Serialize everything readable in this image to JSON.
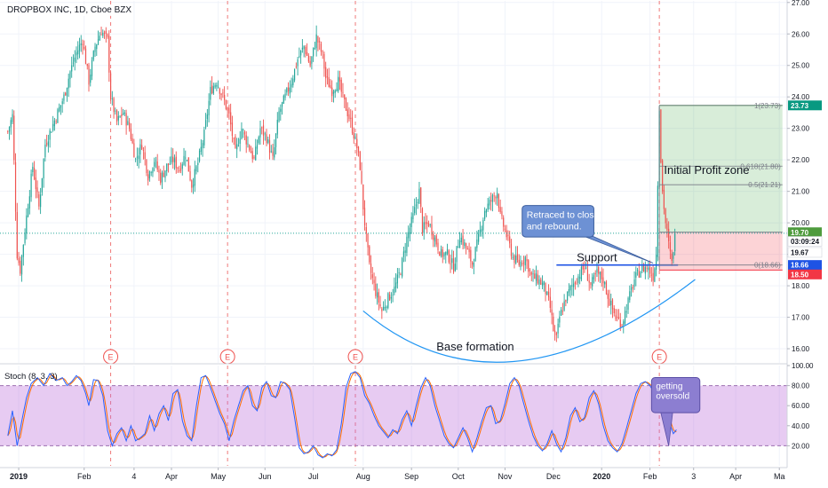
{
  "header": {
    "title": "DROPBOX INC, 1D, Cboe BZX"
  },
  "chart_data": {
    "type": "candlestick",
    "title": "DROPBOX INC, 1D, Cboe BZX",
    "price_axis": {
      "ylim": [
        15.55,
        27.05
      ],
      "ticks": [
        "16.00",
        "17.00",
        "18.00",
        "19.00",
        "20.00",
        "21.00",
        "22.00",
        "23.00",
        "24.00",
        "25.00",
        "26.00",
        "27.00"
      ]
    },
    "time_axis": {
      "labels": [
        {
          "t": 7,
          "label": "2019",
          "bold": true
        },
        {
          "t": 49,
          "label": "Feb"
        },
        {
          "t": 81,
          "label": "4"
        },
        {
          "t": 105,
          "label": "Apr"
        },
        {
          "t": 135,
          "label": "May"
        },
        {
          "t": 165,
          "label": "Jun"
        },
        {
          "t": 196,
          "label": "Jul"
        },
        {
          "t": 228,
          "label": "Aug"
        },
        {
          "t": 259,
          "label": "Sep"
        },
        {
          "t": 289,
          "label": "Oct"
        },
        {
          "t": 319,
          "label": "Nov"
        },
        {
          "t": 350,
          "label": "Dec"
        },
        {
          "t": 381,
          "label": "2020",
          "bold": true
        },
        {
          "t": 412,
          "label": "Feb"
        },
        {
          "t": 440,
          "label": "3"
        },
        {
          "t": 467,
          "label": "Apr"
        },
        {
          "t": 495,
          "label": "Ma"
        }
      ]
    },
    "price_keypoints": [
      [
        0,
        22.9
      ],
      [
        3,
        23.4
      ],
      [
        6,
        19.0
      ],
      [
        8,
        18.5
      ],
      [
        12,
        20.2
      ],
      [
        16,
        21.8
      ],
      [
        20,
        20.5
      ],
      [
        24,
        22.5
      ],
      [
        28,
        23.0
      ],
      [
        32,
        23.5
      ],
      [
        36,
        24.0
      ],
      [
        40,
        24.8
      ],
      [
        44,
        25.4
      ],
      [
        48,
        25.8
      ],
      [
        52,
        24.5
      ],
      [
        56,
        25.6
      ],
      [
        60,
        26.1
      ],
      [
        64,
        25.8
      ],
      [
        66,
        24.0
      ],
      [
        70,
        23.2
      ],
      [
        74,
        23.5
      ],
      [
        78,
        23.0
      ],
      [
        82,
        22.0
      ],
      [
        86,
        22.5
      ],
      [
        90,
        21.5
      ],
      [
        94,
        22.0
      ],
      [
        98,
        21.4
      ],
      [
        102,
        21.8
      ],
      [
        106,
        22.0
      ],
      [
        110,
        21.7
      ],
      [
        114,
        22.2
      ],
      [
        118,
        21.2
      ],
      [
        122,
        21.9
      ],
      [
        126,
        22.8
      ],
      [
        130,
        24.2
      ],
      [
        134,
        24.5
      ],
      [
        138,
        24.0
      ],
      [
        142,
        23.4
      ],
      [
        146,
        22.2
      ],
      [
        150,
        23.0
      ],
      [
        154,
        22.5
      ],
      [
        158,
        22.0
      ],
      [
        162,
        23.0
      ],
      [
        166,
        22.7
      ],
      [
        170,
        22.0
      ],
      [
        174,
        23.5
      ],
      [
        178,
        24.0
      ],
      [
        182,
        24.5
      ],
      [
        186,
        25.2
      ],
      [
        190,
        25.6
      ],
      [
        194,
        25.0
      ],
      [
        198,
        25.9
      ],
      [
        202,
        25.3
      ],
      [
        204,
        24.6
      ],
      [
        208,
        24.2
      ],
      [
        212,
        24.5
      ],
      [
        216,
        23.8
      ],
      [
        220,
        23.2
      ],
      [
        224,
        22.4
      ],
      [
        226,
        21.8
      ],
      [
        228,
        20.5
      ],
      [
        230,
        19.5
      ],
      [
        232,
        18.6
      ],
      [
        236,
        17.8
      ],
      [
        240,
        17.2
      ],
      [
        244,
        17.6
      ],
      [
        248,
        17.9
      ],
      [
        252,
        18.5
      ],
      [
        256,
        19.5
      ],
      [
        260,
        20.2
      ],
      [
        264,
        21.0
      ],
      [
        266,
        19.8
      ],
      [
        270,
        20.0
      ],
      [
        274,
        19.5
      ],
      [
        278,
        19.0
      ],
      [
        282,
        19.0
      ],
      [
        286,
        18.6
      ],
      [
        290,
        19.6
      ],
      [
        294,
        19.2
      ],
      [
        298,
        18.7
      ],
      [
        302,
        19.5
      ],
      [
        306,
        20.4
      ],
      [
        310,
        20.7
      ],
      [
        314,
        21.0
      ],
      [
        316,
        20.2
      ],
      [
        320,
        19.6
      ],
      [
        324,
        18.9
      ],
      [
        328,
        18.7
      ],
      [
        332,
        18.9
      ],
      [
        336,
        18.3
      ],
      [
        340,
        18.2
      ],
      [
        344,
        18.0
      ],
      [
        348,
        17.3
      ],
      [
        350,
        16.6
      ],
      [
        352,
        16.3
      ],
      [
        354,
        17.0
      ],
      [
        358,
        17.6
      ],
      [
        362,
        18.0
      ],
      [
        366,
        18.3
      ],
      [
        370,
        18.6
      ],
      [
        374,
        18.0
      ],
      [
        378,
        18.4
      ],
      [
        382,
        18.2
      ],
      [
        386,
        17.5
      ],
      [
        390,
        17.0
      ],
      [
        394,
        16.8
      ],
      [
        398,
        17.5
      ],
      [
        402,
        18.2
      ],
      [
        406,
        18.5
      ],
      [
        410,
        18.6
      ],
      [
        414,
        18.3
      ],
      [
        416,
        19.0
      ],
      [
        417,
        21.3
      ],
      [
        418,
        23.73
      ],
      [
        419,
        22.0
      ],
      [
        420,
        21.0
      ],
      [
        422,
        20.0
      ],
      [
        424,
        19.3
      ],
      [
        426,
        18.7
      ],
      [
        428,
        19.67
      ]
    ],
    "stochastic": {
      "name": "Stoch (8, 3, 3)",
      "ylim": [
        0,
        100
      ],
      "upper_band": 80,
      "lower_band": 20,
      "ticks": [
        "20.00",
        "40.00",
        "60.00",
        "80.00",
        "100.00"
      ],
      "k_keypoints": [
        [
          0,
          30
        ],
        [
          3,
          55
        ],
        [
          6,
          20
        ],
        [
          9,
          45
        ],
        [
          12,
          68
        ],
        [
          15,
          82
        ],
        [
          19,
          88
        ],
        [
          23,
          80
        ],
        [
          27,
          92
        ],
        [
          31,
          85
        ],
        [
          35,
          88
        ],
        [
          38,
          80
        ],
        [
          41,
          84
        ],
        [
          44,
          90
        ],
        [
          47,
          85
        ],
        [
          50,
          72
        ],
        [
          52,
          60
        ],
        [
          55,
          86
        ],
        [
          58,
          85
        ],
        [
          61,
          70
        ],
        [
          64,
          35
        ],
        [
          67,
          20
        ],
        [
          70,
          32
        ],
        [
          73,
          38
        ],
        [
          76,
          25
        ],
        [
          79,
          40
        ],
        [
          82,
          25
        ],
        [
          85,
          28
        ],
        [
          88,
          32
        ],
        [
          91,
          50
        ],
        [
          94,
          35
        ],
        [
          97,
          52
        ],
        [
          100,
          60
        ],
        [
          103,
          45
        ],
        [
          106,
          72
        ],
        [
          109,
          76
        ],
        [
          112,
          45
        ],
        [
          115,
          30
        ],
        [
          118,
          25
        ],
        [
          121,
          60
        ],
        [
          124,
          88
        ],
        [
          127,
          90
        ],
        [
          130,
          78
        ],
        [
          133,
          65
        ],
        [
          136,
          52
        ],
        [
          139,
          42
        ],
        [
          142,
          25
        ],
        [
          145,
          45
        ],
        [
          148,
          60
        ],
        [
          151,
          75
        ],
        [
          154,
          80
        ],
        [
          157,
          60
        ],
        [
          160,
          55
        ],
        [
          163,
          78
        ],
        [
          166,
          84
        ],
        [
          169,
          70
        ],
        [
          172,
          68
        ],
        [
          175,
          84
        ],
        [
          178,
          82
        ],
        [
          181,
          76
        ],
        [
          184,
          48
        ],
        [
          187,
          18
        ],
        [
          190,
          12
        ],
        [
          193,
          14
        ],
        [
          196,
          20
        ],
        [
          199,
          11
        ],
        [
          202,
          8
        ],
        [
          205,
          12
        ],
        [
          208,
          10
        ],
        [
          211,
          16
        ],
        [
          214,
          42
        ],
        [
          217,
          78
        ],
        [
          220,
          92
        ],
        [
          223,
          94
        ],
        [
          226,
          88
        ],
        [
          229,
          70
        ],
        [
          232,
          62
        ],
        [
          235,
          50
        ],
        [
          238,
          40
        ],
        [
          241,
          34
        ],
        [
          244,
          28
        ],
        [
          247,
          36
        ],
        [
          250,
          32
        ],
        [
          253,
          46
        ],
        [
          256,
          55
        ],
        [
          259,
          40
        ],
        [
          262,
          60
        ],
        [
          265,
          78
        ],
        [
          268,
          88
        ],
        [
          271,
          80
        ],
        [
          274,
          60
        ],
        [
          277,
          45
        ],
        [
          280,
          30
        ],
        [
          283,
          22
        ],
        [
          286,
          18
        ],
        [
          289,
          28
        ],
        [
          292,
          38
        ],
        [
          295,
          28
        ],
        [
          298,
          14
        ],
        [
          301,
          28
        ],
        [
          304,
          44
        ],
        [
          307,
          58
        ],
        [
          310,
          60
        ],
        [
          313,
          42
        ],
        [
          316,
          45
        ],
        [
          319,
          62
        ],
        [
          322,
          82
        ],
        [
          325,
          88
        ],
        [
          328,
          80
        ],
        [
          331,
          62
        ],
        [
          334,
          45
        ],
        [
          337,
          30
        ],
        [
          340,
          20
        ],
        [
          343,
          15
        ],
        [
          346,
          22
        ],
        [
          349,
          35
        ],
        [
          352,
          22
        ],
        [
          355,
          14
        ],
        [
          358,
          28
        ],
        [
          361,
          50
        ],
        [
          364,
          58
        ],
        [
          367,
          44
        ],
        [
          370,
          48
        ],
        [
          373,
          68
        ],
        [
          376,
          75
        ],
        [
          379,
          62
        ],
        [
          382,
          40
        ],
        [
          385,
          25
        ],
        [
          388,
          18
        ],
        [
          391,
          14
        ],
        [
          394,
          22
        ],
        [
          397,
          38
        ],
        [
          400,
          55
        ],
        [
          403,
          72
        ],
        [
          406,
          82
        ],
        [
          409,
          84
        ],
        [
          412,
          80
        ],
        [
          415,
          72
        ],
        [
          418,
          85
        ],
        [
          421,
          70
        ],
        [
          424,
          45
        ],
        [
          427,
          32
        ],
        [
          429,
          36
        ]
      ]
    },
    "annotations": {
      "support": {
        "price": 18.66,
        "t0": 352,
        "t1": 430,
        "label": "Support"
      },
      "base_curve": {
        "t0": 228,
        "t_bottom": 326,
        "t1": 441,
        "p0": 17.2,
        "p_bottom": 15.6,
        "p1": 18.2,
        "label": "Base formation"
      },
      "position": {
        "t0": 418,
        "t1": 497,
        "entry": 19.7,
        "stop": 18.5,
        "target": 23.73,
        "fib_levels": [
          {
            "price": 23.73,
            "label": "1(23.73)"
          },
          {
            "price": 21.8,
            "label": "0.618(21.80)"
          },
          {
            "price": 21.21,
            "label": "0.5(21.21)"
          },
          {
            "price": 18.66,
            "label": "0(18.66)"
          }
        ],
        "label": "Initial Profit zone"
      },
      "callout_price": {
        "text_lines": [
          "Retraced to close gap",
          "and rebound."
        ],
        "t_left": 330,
        "t_right": 376,
        "top_price": 20.55,
        "bottom_price": 19.55,
        "arrow_t": 414,
        "arrow_price": 18.72
      },
      "callout_stoch": {
        "text_lines": [
          "getting",
          "oversold"
        ],
        "t_left": 413,
        "t_right": 444,
        "top_value": 88,
        "bottom_value": 53,
        "arrow_t": 424,
        "arrow_value": 20
      },
      "earnings": [
        {
          "t": 66,
          "label": "E"
        },
        {
          "t": 141,
          "label": "E"
        },
        {
          "t": 223,
          "label": "E"
        },
        {
          "t": 418,
          "label": "E"
        }
      ],
      "price_tags": [
        {
          "label": "23.73",
          "price": 23.73,
          "color": "#089981"
        },
        {
          "label": "19.70",
          "price": 19.7,
          "color": "#4e9b3d"
        },
        {
          "label": "03:09:24",
          "price": 19.41,
          "color": "#ffffff",
          "text_color": "#131722"
        },
        {
          "label": "19.67",
          "price": 19.06,
          "color": "#ffffff",
          "text_color": "#131722"
        },
        {
          "label": "18.66",
          "price": 18.66,
          "color": "#1e53e5"
        },
        {
          "label": "18.50",
          "price": 18.36,
          "color": "#f23645"
        }
      ]
    }
  }
}
